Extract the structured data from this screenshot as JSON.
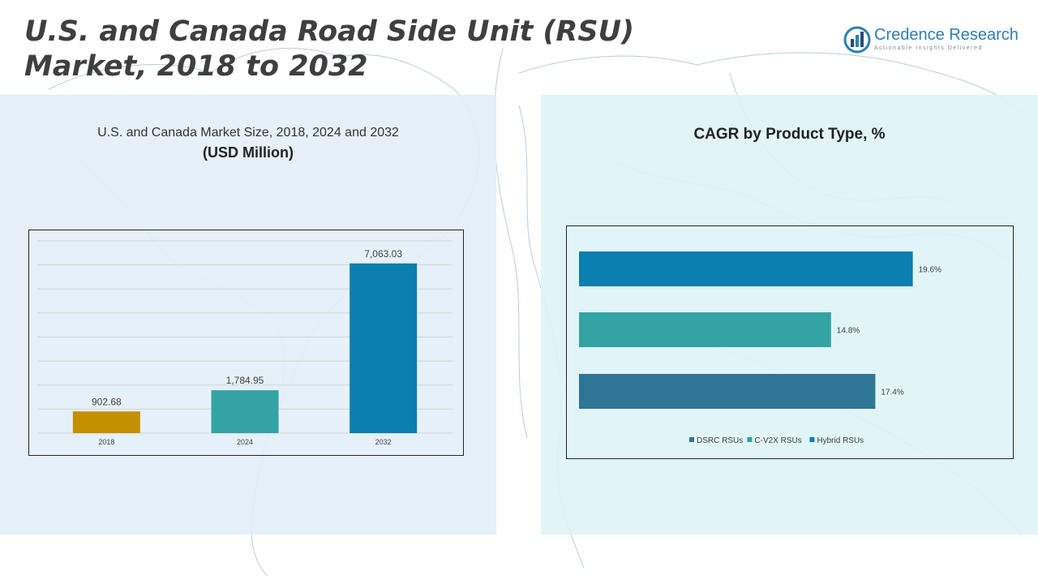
{
  "header": {
    "title": "U.S. and Canada Road Side Unit (RSU) Market, 2018 to 2032"
  },
  "logo": {
    "name": "Credence Research",
    "tagline": "Actionable Insights Delivered",
    "icon": "bar-chart-logo-icon"
  },
  "left_panel": {
    "title": "U.S. and Canada Market Size, 2018, 2024 and 2032",
    "subtitle": "(USD Million)"
  },
  "right_panel": {
    "title": "CAGR by Product Type, %"
  },
  "chart_data": [
    {
      "type": "bar",
      "categories": [
        "2018",
        "2024",
        "2032"
      ],
      "values": [
        902.68,
        1784.95,
        7063.03
      ],
      "value_labels": [
        "902.68",
        "1,784.95",
        "7,063.03"
      ],
      "colors": [
        "#c49000",
        "#34a3a3",
        "#0a7fb0"
      ],
      "ylim": [
        0,
        8000
      ],
      "grid": true,
      "title": "U.S. and Canada Market Size, 2018, 2024 and 2032",
      "ylabel": "(USD Million)"
    },
    {
      "type": "bar",
      "orientation": "horizontal",
      "series": [
        {
          "name": "DSRC RSUs",
          "value": 17.4,
          "label": "17.4%",
          "color": "#2f7596"
        },
        {
          "name": "C-V2X RSUs",
          "value": 14.8,
          "label": "14.8%",
          "color": "#34a3a3"
        },
        {
          "name": "Hybrid RSUs",
          "value": 19.6,
          "label": "19.6%",
          "color": "#0a7fb0"
        }
      ],
      "xlim": [
        0,
        20
      ],
      "legend_position": "bottom",
      "title": "CAGR by Product Type, %"
    }
  ]
}
